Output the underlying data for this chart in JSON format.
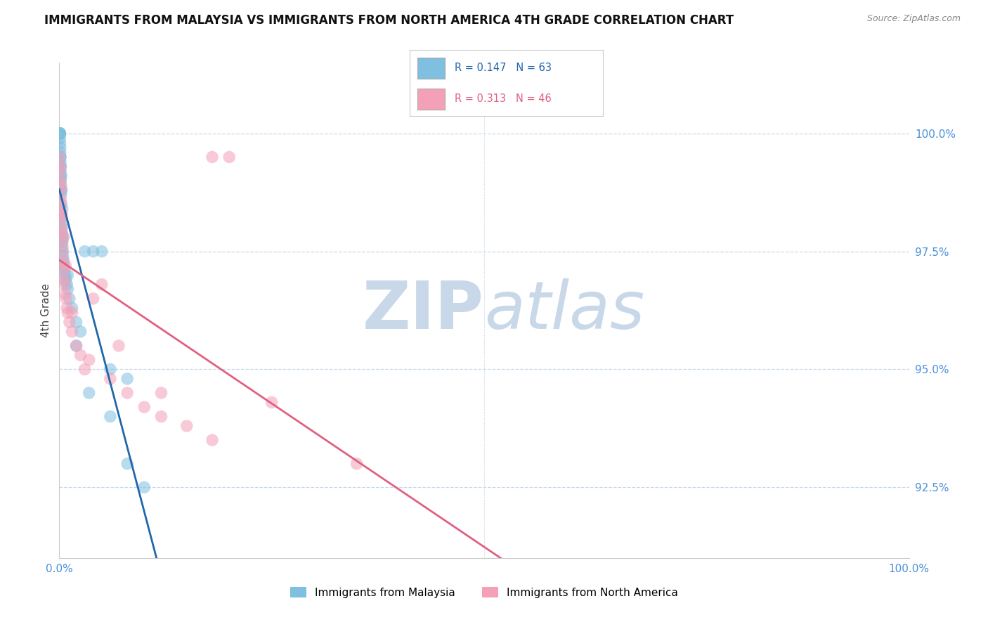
{
  "title": "IMMIGRANTS FROM MALAYSIA VS IMMIGRANTS FROM NORTH AMERICA 4TH GRADE CORRELATION CHART",
  "source": "Source: ZipAtlas.com",
  "ylabel": "4th Grade",
  "yticks": [
    92.5,
    95.0,
    97.5,
    100.0
  ],
  "ytick_labels": [
    "92.5%",
    "95.0%",
    "97.5%",
    "100.0%"
  ],
  "xlim": [
    0.0,
    100.0
  ],
  "ylim": [
    91.0,
    101.5
  ],
  "legend_blue_label": "Immigrants from Malaysia",
  "legend_pink_label": "Immigrants from North America",
  "R_blue": 0.147,
  "N_blue": 63,
  "R_pink": 0.313,
  "N_pink": 46,
  "blue_color": "#7fbfdf",
  "pink_color": "#f4a0b8",
  "blue_line_color": "#2266aa",
  "pink_line_color": "#e06080",
  "title_fontsize": 12,
  "tick_color": "#4a90d9",
  "grid_color": "#c8d8e8",
  "watermark_zip_color": "#c8d8e8",
  "watermark_atlas_color": "#c8d8e8",
  "blue_scatter_x": [
    0.02,
    0.03,
    0.04,
    0.05,
    0.06,
    0.07,
    0.08,
    0.09,
    0.1,
    0.11,
    0.12,
    0.13,
    0.14,
    0.15,
    0.16,
    0.17,
    0.18,
    0.19,
    0.2,
    0.22,
    0.24,
    0.25,
    0.26,
    0.28,
    0.3,
    0.32,
    0.35,
    0.38,
    0.4,
    0.45,
    0.5,
    0.55,
    0.6,
    0.7,
    0.8,
    0.9,
    1.0,
    1.2,
    1.5,
    2.0,
    2.5,
    3.0,
    4.0,
    5.0,
    6.0,
    8.0,
    0.02,
    0.04,
    0.06,
    0.08,
    0.12,
    0.15,
    0.18,
    0.22,
    0.28,
    0.35,
    0.5,
    1.0,
    2.0,
    3.5,
    6.0,
    8.0,
    10.0
  ],
  "blue_scatter_y": [
    100.0,
    100.0,
    100.0,
    100.0,
    100.0,
    100.0,
    100.0,
    100.0,
    99.8,
    99.6,
    99.5,
    99.4,
    99.3,
    99.2,
    99.1,
    99.0,
    98.9,
    98.8,
    98.7,
    98.5,
    98.3,
    98.2,
    98.1,
    98.0,
    97.9,
    97.8,
    97.7,
    97.6,
    97.5,
    97.4,
    97.3,
    97.2,
    97.1,
    97.0,
    96.9,
    96.8,
    96.7,
    96.5,
    96.3,
    96.0,
    95.8,
    97.5,
    97.5,
    97.5,
    95.0,
    94.8,
    100.0,
    100.0,
    100.0,
    99.9,
    99.7,
    99.5,
    99.3,
    99.1,
    98.8,
    98.4,
    97.8,
    97.0,
    95.5,
    94.5,
    94.0,
    93.0,
    92.5
  ],
  "pink_scatter_x": [
    0.05,
    0.08,
    0.1,
    0.12,
    0.15,
    0.18,
    0.2,
    0.22,
    0.25,
    0.28,
    0.3,
    0.35,
    0.4,
    0.45,
    0.5,
    0.55,
    0.6,
    0.7,
    0.8,
    0.9,
    1.0,
    1.2,
    1.5,
    2.0,
    2.5,
    3.0,
    4.0,
    5.0,
    6.0,
    8.0,
    10.0,
    12.0,
    15.0,
    18.0,
    20.0,
    0.15,
    0.25,
    0.45,
    0.75,
    1.5,
    3.5,
    7.0,
    12.0,
    18.0,
    25.0,
    35.0
  ],
  "pink_scatter_y": [
    99.5,
    99.3,
    99.2,
    99.0,
    98.8,
    98.6,
    98.5,
    98.3,
    98.2,
    98.0,
    97.9,
    97.7,
    97.5,
    97.3,
    97.1,
    96.9,
    96.8,
    96.6,
    96.5,
    96.3,
    96.2,
    96.0,
    95.8,
    95.5,
    95.3,
    95.0,
    96.5,
    96.8,
    94.8,
    94.5,
    94.2,
    94.0,
    93.8,
    99.5,
    99.5,
    98.9,
    98.3,
    97.8,
    97.2,
    96.2,
    95.2,
    95.5,
    94.5,
    93.5,
    94.3,
    93.0
  ]
}
